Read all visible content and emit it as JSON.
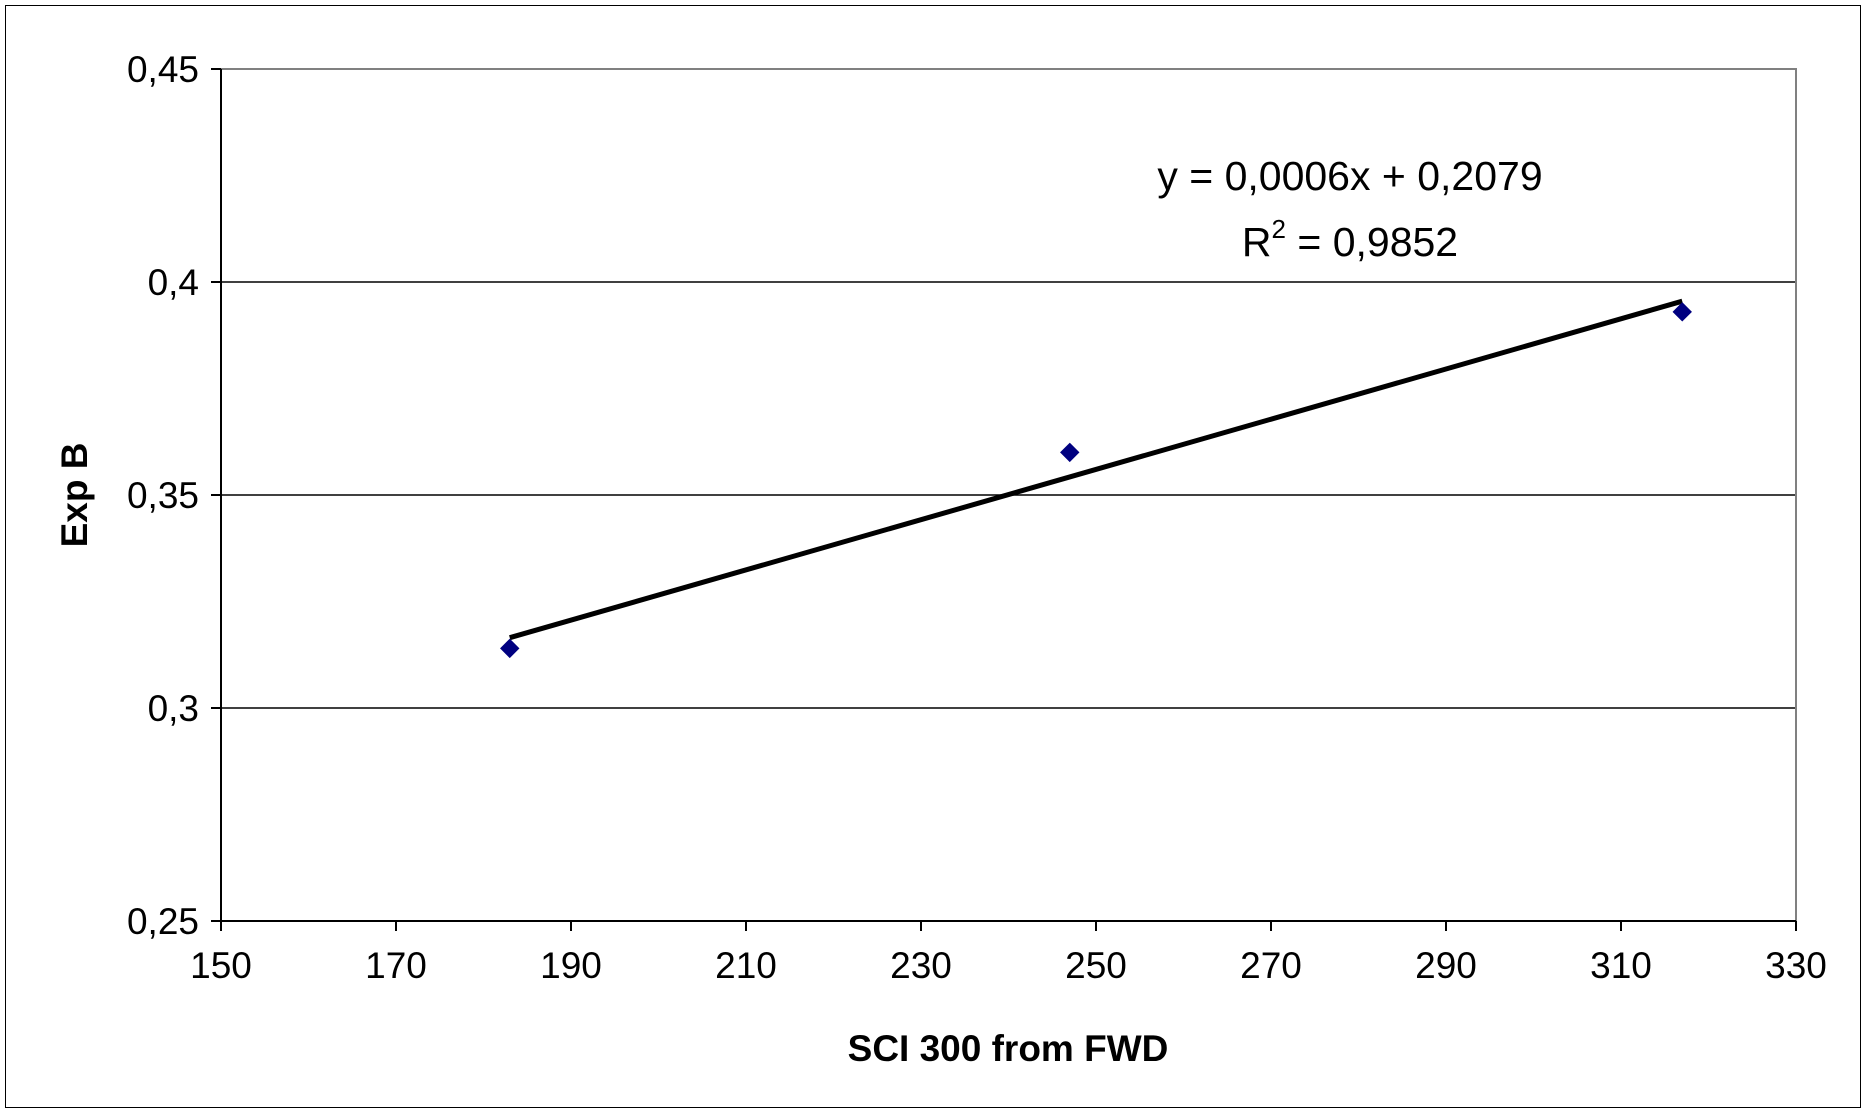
{
  "chart_data": {
    "type": "scatter",
    "title": "",
    "xlabel": "SCI 300 from FWD",
    "ylabel": "Exp B",
    "xlim": [
      150,
      330
    ],
    "ylim": [
      0.25,
      0.45
    ],
    "x_ticks": [
      "150",
      "170",
      "190",
      "210",
      "230",
      "250",
      "270",
      "290",
      "310",
      "330"
    ],
    "y_ticks": [
      "0,25",
      "0,3",
      "0,35",
      "0,4",
      "0,45"
    ],
    "grid": "horizontal",
    "series": [
      {
        "marker": "diamond",
        "color": "#000080",
        "points": [
          {
            "x": 183,
            "y": 0.314
          },
          {
            "x": 247,
            "y": 0.36
          },
          {
            "x": 317,
            "y": 0.393
          }
        ]
      }
    ],
    "trendline": {
      "type": "linear",
      "x_range": [
        183,
        317
      ],
      "y_range": [
        0.3165,
        0.3955
      ],
      "color": "#000000",
      "equation_text": "y = 0,0006x + 0,2079",
      "r2_prefix": "R",
      "r2_exponent": "2",
      "r2_value_text": " = 0,9852"
    }
  }
}
